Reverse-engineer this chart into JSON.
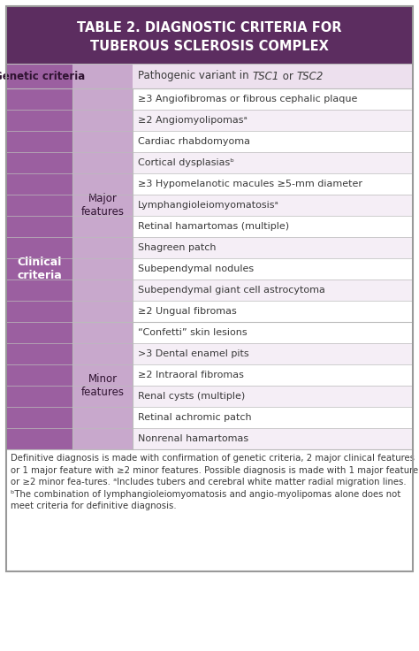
{
  "title_line1": "TABLE 2. DIAGNOSTIC CRITERIA FOR",
  "title_line2": "TUBEROUS SCLEROSIS COMPLEX",
  "title_bg": "#5c2d60",
  "title_color": "#ffffff",
  "col1_bg": "#9b5fa0",
  "col2_bg": "#c8a8cc",
  "row_bg_odd": "#f5eef6",
  "row_bg_even": "#ffffff",
  "genetic_row_bg": "#ede0ee",
  "border_color": "#bbbbbb",
  "outer_border_color": "#999999",
  "text_color": "#3a3a3a",
  "header_bold_color": "#2e1230",
  "genetic_label": "Genetic criteria",
  "clinical_label": "Clinical\ncriteria",
  "major_label": "Major\nfeatures",
  "minor_label": "Minor\nfeatures",
  "major_features": [
    "≥3 Angiofibromas or fibrous cephalic plaque",
    "≥2 Angiomyolipomasᵃ",
    "Cardiac rhabdomyoma",
    "Cortical dysplasiasᵇ",
    "≥3 Hypomelanotic macules ≥5-mm diameter",
    "Lymphangioleiomyomatosisᵃ",
    "Retinal hamartomas (multiple)",
    "Shagreen patch",
    "Subependymal nodules",
    "Subependymal giant cell astrocytoma",
    "≥2 Ungual fibromas"
  ],
  "minor_features": [
    "“Confetti” skin lesions",
    ">3 Dental enamel pits",
    "≥2 Intraoral fibromas",
    "Renal cysts (multiple)",
    "Retinal achromic patch",
    "Nonrenal hamartomas"
  ],
  "footnote": "Definitive diagnosis is made with confirmation of genetic criteria, 2 major clinical features or 1 major feature with ≥2 minor features. Possible diagnosis is made with 1 major feature or ≥2 minor fea-tures. ᵃIncludes tubers and cerebral white matter radial migration lines. ᵇThe combination of lymphangioleiomyomatosis and angio-myolipomas alone does not meet criteria for definitive diagnosis."
}
